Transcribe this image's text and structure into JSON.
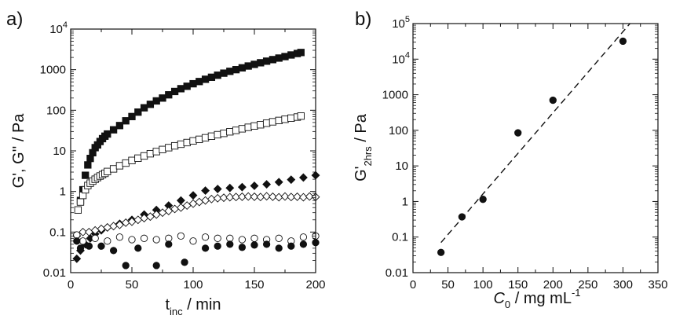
{
  "chart_data": [
    {
      "type": "scatter",
      "panel_label": "a)",
      "xlabel_main": "t",
      "xlabel_sub": "inc",
      "xlabel_rest": " / min",
      "ylabel": "G', G'' / Pa",
      "xlim": [
        0,
        200
      ],
      "ylim": [
        0.01,
        10000
      ],
      "yscale": "log",
      "x_ticks": [
        0,
        50,
        100,
        150,
        200
      ],
      "y_ticks": [
        {
          "value": 10000,
          "mantissa": "10",
          "exponent": "4"
        },
        {
          "value": 1000,
          "mantissa": "1000",
          "exponent": ""
        },
        {
          "value": 100,
          "mantissa": "100",
          "exponent": ""
        },
        {
          "value": 10,
          "mantissa": "10",
          "exponent": ""
        },
        {
          "value": 1,
          "mantissa": "1",
          "exponent": ""
        },
        {
          "value": 0.1,
          "mantissa": "0.1",
          "exponent": ""
        },
        {
          "value": 0.01,
          "mantissa": "0.01",
          "exponent": ""
        }
      ],
      "grid": false,
      "series": [
        {
          "marker": "filled-square",
          "x": [
            8,
            10,
            12,
            14,
            16,
            18,
            20,
            22,
            24,
            26,
            28,
            30,
            35,
            40,
            45,
            50,
            55,
            60,
            65,
            70,
            75,
            80,
            85,
            90,
            95,
            100,
            105,
            110,
            115,
            120,
            125,
            130,
            135,
            140,
            145,
            150,
            155,
            160,
            165,
            170,
            175,
            180,
            185,
            188
          ],
          "y": [
            0.6,
            1.1,
            2.5,
            4.5,
            6.5,
            9,
            12,
            14,
            17,
            20,
            23,
            26,
            33,
            42,
            55,
            70,
            90,
            115,
            140,
            170,
            200,
            240,
            290,
            340,
            390,
            450,
            510,
            580,
            650,
            730,
            820,
            910,
            1000,
            1110,
            1230,
            1350,
            1480,
            1620,
            1770,
            1930,
            2100,
            2300,
            2500,
            2650
          ]
        },
        {
          "marker": "open-square",
          "x": [
            6,
            8,
            10,
            12,
            14,
            16,
            18,
            20,
            22,
            24,
            26,
            28,
            30,
            35,
            40,
            45,
            50,
            55,
            60,
            65,
            70,
            75,
            80,
            85,
            90,
            95,
            100,
            105,
            110,
            115,
            120,
            125,
            130,
            135,
            140,
            145,
            150,
            155,
            160,
            165,
            170,
            175,
            180,
            185,
            188
          ],
          "y": [
            0.35,
            0.55,
            0.8,
            1.1,
            1.4,
            1.6,
            1.8,
            2.0,
            2.2,
            2.4,
            2.6,
            2.8,
            3.1,
            3.6,
            4.3,
            5.0,
            5.8,
            6.6,
            7.5,
            8.5,
            9.6,
            10.8,
            12,
            13.3,
            14.6,
            16,
            17.6,
            19.2,
            21,
            23,
            25,
            27,
            29.5,
            32,
            35,
            38,
            41,
            44,
            48,
            52,
            56,
            60,
            64,
            68,
            72
          ]
        },
        {
          "marker": "filled-diamond",
          "x": [
            5,
            8,
            12,
            16,
            20,
            25,
            30,
            40,
            50,
            60,
            70,
            80,
            90,
            100,
            110,
            120,
            130,
            140,
            150,
            160,
            170,
            180,
            190,
            200
          ],
          "y": [
            0.022,
            0.035,
            0.05,
            0.07,
            0.09,
            0.11,
            0.13,
            0.16,
            0.2,
            0.27,
            0.35,
            0.45,
            0.6,
            0.8,
            1.05,
            1.15,
            1.22,
            1.28,
            1.38,
            1.5,
            1.7,
            1.95,
            2.2,
            2.5
          ]
        },
        {
          "marker": "open-diamond",
          "x": [
            5,
            10,
            15,
            20,
            25,
            30,
            35,
            40,
            45,
            50,
            55,
            60,
            65,
            70,
            75,
            80,
            85,
            90,
            95,
            100,
            105,
            110,
            115,
            120,
            125,
            130,
            135,
            140,
            145,
            150,
            155,
            160,
            165,
            170,
            175,
            180,
            185,
            190,
            195,
            200
          ],
          "y": [
            0.08,
            0.1,
            0.1,
            0.11,
            0.12,
            0.13,
            0.14,
            0.15,
            0.17,
            0.18,
            0.2,
            0.22,
            0.24,
            0.27,
            0.3,
            0.33,
            0.37,
            0.4,
            0.45,
            0.5,
            0.55,
            0.6,
            0.65,
            0.68,
            0.7,
            0.72,
            0.73,
            0.74,
            0.75,
            0.74,
            0.73,
            0.76,
            0.74,
            0.72,
            0.75,
            0.73,
            0.74,
            0.72,
            0.75,
            0.73
          ]
        },
        {
          "marker": "open-circle",
          "x": [
            5,
            10,
            20,
            30,
            40,
            50,
            60,
            70,
            80,
            90,
            100,
            110,
            120,
            130,
            140,
            150,
            160,
            170,
            180,
            190,
            200
          ],
          "y": [
            0.085,
            0.06,
            0.07,
            0.06,
            0.075,
            0.065,
            0.07,
            0.065,
            0.07,
            0.08,
            0.06,
            0.075,
            0.07,
            0.07,
            0.065,
            0.07,
            0.065,
            0.07,
            0.06,
            0.075,
            0.08
          ]
        },
        {
          "marker": "filled-circle",
          "x": [
            5,
            8,
            15,
            25,
            35,
            45,
            55,
            70,
            80,
            93,
            110,
            120,
            130,
            140,
            150,
            160,
            170,
            180,
            190,
            200
          ],
          "y": [
            0.06,
            0.04,
            0.045,
            0.045,
            0.035,
            0.015,
            0.04,
            0.015,
            0.05,
            0.018,
            0.04,
            0.045,
            0.05,
            0.042,
            0.048,
            0.05,
            0.04,
            0.045,
            0.05,
            0.055
          ]
        }
      ]
    },
    {
      "type": "scatter",
      "panel_label": "b)",
      "xlabel_main": "C",
      "xlabel_sub": "0",
      "xlabel_rest": " / mg mL",
      "xlabel_sup": "-1",
      "ylabel_main": "G'",
      "ylabel_sub": "2hrs",
      "ylabel_rest": " / Pa",
      "xlim": [
        0,
        350
      ],
      "ylim": [
        0.01,
        100000
      ],
      "yscale": "log",
      "x_ticks": [
        0,
        50,
        100,
        150,
        200,
        250,
        300,
        350
      ],
      "y_ticks": [
        {
          "value": 100000,
          "mantissa": "10",
          "exponent": "5"
        },
        {
          "value": 10000,
          "mantissa": "10",
          "exponent": "4"
        },
        {
          "value": 1000,
          "mantissa": "1000",
          "exponent": ""
        },
        {
          "value": 100,
          "mantissa": "100",
          "exponent": ""
        },
        {
          "value": 10,
          "mantissa": "10",
          "exponent": ""
        },
        {
          "value": 1,
          "mantissa": "1",
          "exponent": ""
        },
        {
          "value": 0.1,
          "mantissa": "0.1",
          "exponent": ""
        },
        {
          "value": 0.01,
          "mantissa": "0.01",
          "exponent": ""
        }
      ],
      "grid": false,
      "points": {
        "x": [
          40,
          70,
          100,
          150,
          200,
          300
        ],
        "y": [
          0.037,
          0.37,
          1.15,
          85,
          700,
          32000
        ]
      },
      "fit_line": {
        "style": "dashed",
        "x": [
          40,
          310
        ],
        "y": [
          0.07,
          100000
        ]
      }
    }
  ]
}
